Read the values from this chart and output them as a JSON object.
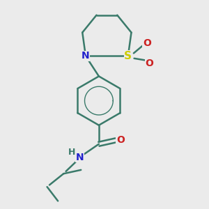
{
  "bg_color": "#ebebeb",
  "bond_color": "#3a7a6a",
  "bond_width": 1.8,
  "N_color": "#2222cc",
  "O_color": "#cc2222",
  "S_color": "#cccc00",
  "H_color": "#3a7a6a",
  "font_size": 10,
  "figsize": [
    3.0,
    3.0
  ],
  "dpi": 100,
  "xlim": [
    -0.5,
    2.5
  ],
  "ylim": [
    -1.2,
    3.2
  ]
}
